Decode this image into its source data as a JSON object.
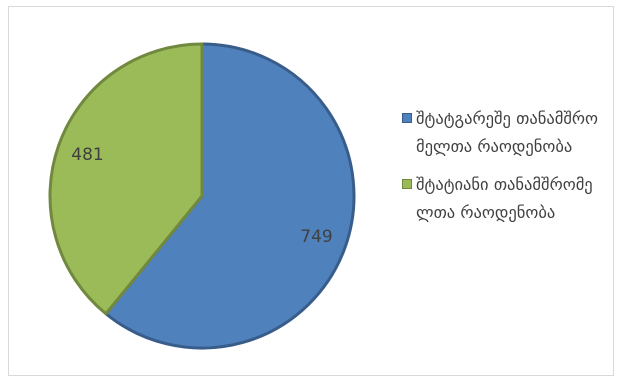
{
  "chart_data": {
    "type": "pie",
    "slices": [
      {
        "label": "შტატგარეშე თანამშრომელთა რაოდენობა",
        "value": 749,
        "color": "#4f81bd",
        "border": "#385d8a"
      },
      {
        "label": "შტატიანი თანამშრომელთა რაოდენობა",
        "value": 481,
        "color": "#9bbb59",
        "border": "#71893f"
      }
    ],
    "legend_position": "right",
    "start_angle_deg": 0
  },
  "legend": {
    "items": [
      {
        "label": "შტატგარეშე თანამშრომელთა რაოდენობა",
        "color": "#4f81bd"
      },
      {
        "label": "შტატიანი თანამშრომელთა რაოდენობა",
        "color": "#9bbb59"
      }
    ]
  }
}
